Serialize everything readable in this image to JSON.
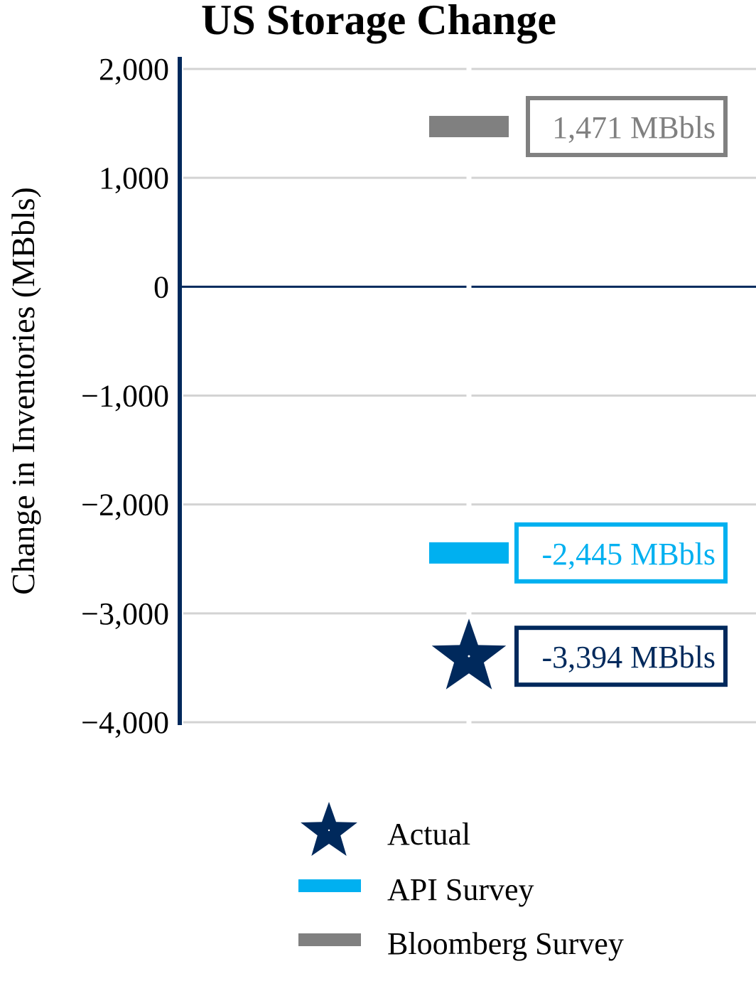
{
  "chart_data": {
    "type": "scatter",
    "title": "US Storage Change",
    "ylabel": "Change in Inventories (MBbls)",
    "xlabel": "",
    "ylim": [
      -4000,
      2000
    ],
    "yticks": [
      2000,
      1000,
      0,
      -1000,
      -2000,
      -3000,
      -4000
    ],
    "ytick_labels": [
      "2,000",
      "1,000",
      "0",
      "−1,000",
      "−2,000",
      "−3,000",
      "−4,000"
    ],
    "grid": true,
    "legend_position": "bottom",
    "series": [
      {
        "name": "Actual",
        "value": -3394,
        "marker": "star",
        "color": "#00295c",
        "label": "-3,394 MBbls"
      },
      {
        "name": "API Survey",
        "value": -2445,
        "marker": "bar",
        "color": "#00b0f0",
        "label": "-2,445 MBbls"
      },
      {
        "name": "Bloomberg Survey",
        "value": 1471,
        "marker": "bar",
        "color": "#808080",
        "label": "1,471 MBbls"
      }
    ]
  }
}
